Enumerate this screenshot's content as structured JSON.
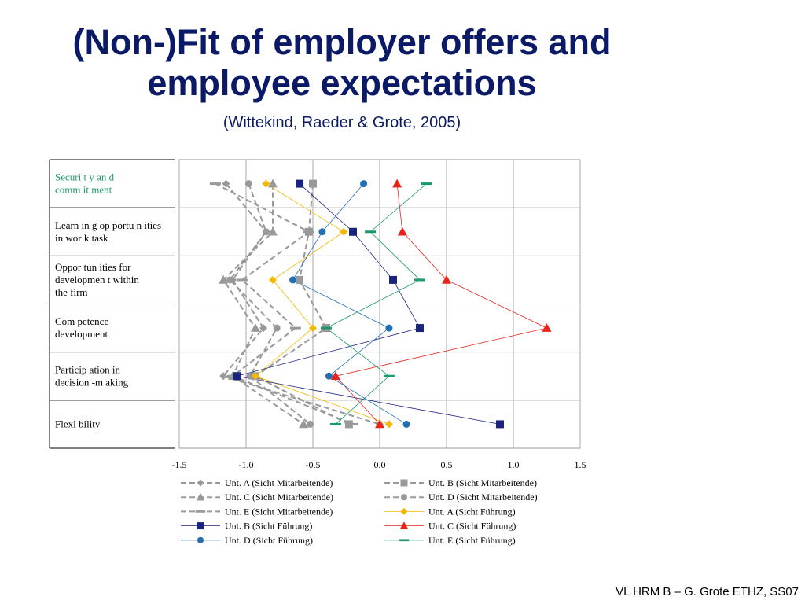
{
  "slide": {
    "title_line1": "(Non-)Fit of employer offers and",
    "title_line2": "employee expectations",
    "subtitle": "(Wittekind, Raeder & Grote, 2005)",
    "footer": "VL HRM B – G. Grote ETHZ, SS07"
  },
  "chart_data": {
    "type": "line",
    "orientation": "horizontal",
    "categories": [
      [
        "Securi t y an d",
        "comm it ment"
      ],
      [
        "Learn in g op portu n ities",
        "in wor k task"
      ],
      [
        "Oppor tun ities for",
        "developmen t within",
        "the firm"
      ],
      [
        "Com petence",
        "development"
      ],
      [
        "Particip ation in",
        "decision -m aking"
      ],
      [
        "Flexi bility"
      ]
    ],
    "category_colors": [
      "#1a9a6a",
      "#000000",
      "#000000",
      "#000000",
      "#000000",
      "#000000"
    ],
    "xlim": [
      -1.5,
      1.5
    ],
    "xticks": [
      -1.5,
      -1.0,
      -0.5,
      0.0,
      0.5,
      1.0,
      1.5
    ],
    "xtick_labels": [
      "-1.5",
      "-1.0",
      "-0.5",
      "0.0",
      "0.5",
      "1.0",
      "1.5"
    ],
    "grid": true,
    "legend_position": "bottom",
    "series": [
      {
        "name": "Unt. A (Sicht Mitarbeitende)",
        "color": "#999999",
        "line": "dashed",
        "marker": "diamond",
        "values": [
          -1.15,
          -0.85,
          -1.1,
          -0.87,
          -1.17,
          0.0
        ]
      },
      {
        "name": "Unt. B (Sicht Mitarbeitende)",
        "color": "#999999",
        "line": "dashed",
        "marker": "square",
        "values": [
          -0.5,
          -0.53,
          -0.6,
          -0.4,
          -0.93,
          -0.23
        ]
      },
      {
        "name": "Unt. C (Sicht Mitarbeitende)",
        "color": "#999999",
        "line": "dashed",
        "marker": "triangle",
        "values": [
          -0.8,
          -0.8,
          -1.17,
          -0.93,
          -1.1,
          -0.57
        ]
      },
      {
        "name": "Unt. D (Sicht Mitarbeitende)",
        "color": "#999999",
        "line": "dashed",
        "marker": "circle",
        "values": [
          -0.98,
          -0.85,
          -1.12,
          -0.77,
          -0.97,
          -0.52
        ]
      },
      {
        "name": "Unt. E (Sicht Mitarbeitende)",
        "color": "#999999",
        "line": "dashed",
        "marker": "dash",
        "values": [
          -1.23,
          -0.53,
          -1.03,
          -0.63,
          -1.1,
          -0.2
        ]
      },
      {
        "name": "Unt. A (Sicht Führung)",
        "color": "#f5b800",
        "line": "solid",
        "marker": "diamond",
        "values": [
          -0.85,
          -0.27,
          -0.8,
          -0.5,
          -0.93,
          0.07
        ]
      },
      {
        "name": "Unt. B (Sicht Führung)",
        "color": "#1a237e",
        "line": "solid",
        "marker": "square",
        "values": [
          -0.6,
          -0.2,
          0.1,
          0.3,
          -1.07,
          0.9
        ]
      },
      {
        "name": "Unt. C (Sicht Führung)",
        "color": "#e8231a",
        "line": "solid",
        "marker": "triangle",
        "values": [
          0.13,
          0.17,
          0.5,
          1.25,
          -0.33,
          0.0
        ]
      },
      {
        "name": "Unt. D (Sicht Führung)",
        "color": "#1f6fb2",
        "line": "solid",
        "marker": "circle",
        "values": [
          -0.12,
          -0.43,
          -0.65,
          0.07,
          -0.38,
          0.2
        ]
      },
      {
        "name": "Unt. E (Sicht Führung)",
        "color": "#1a9a6a",
        "line": "solid",
        "marker": "dash",
        "values": [
          0.35,
          -0.07,
          0.3,
          -0.4,
          0.07,
          -0.33
        ]
      }
    ]
  }
}
